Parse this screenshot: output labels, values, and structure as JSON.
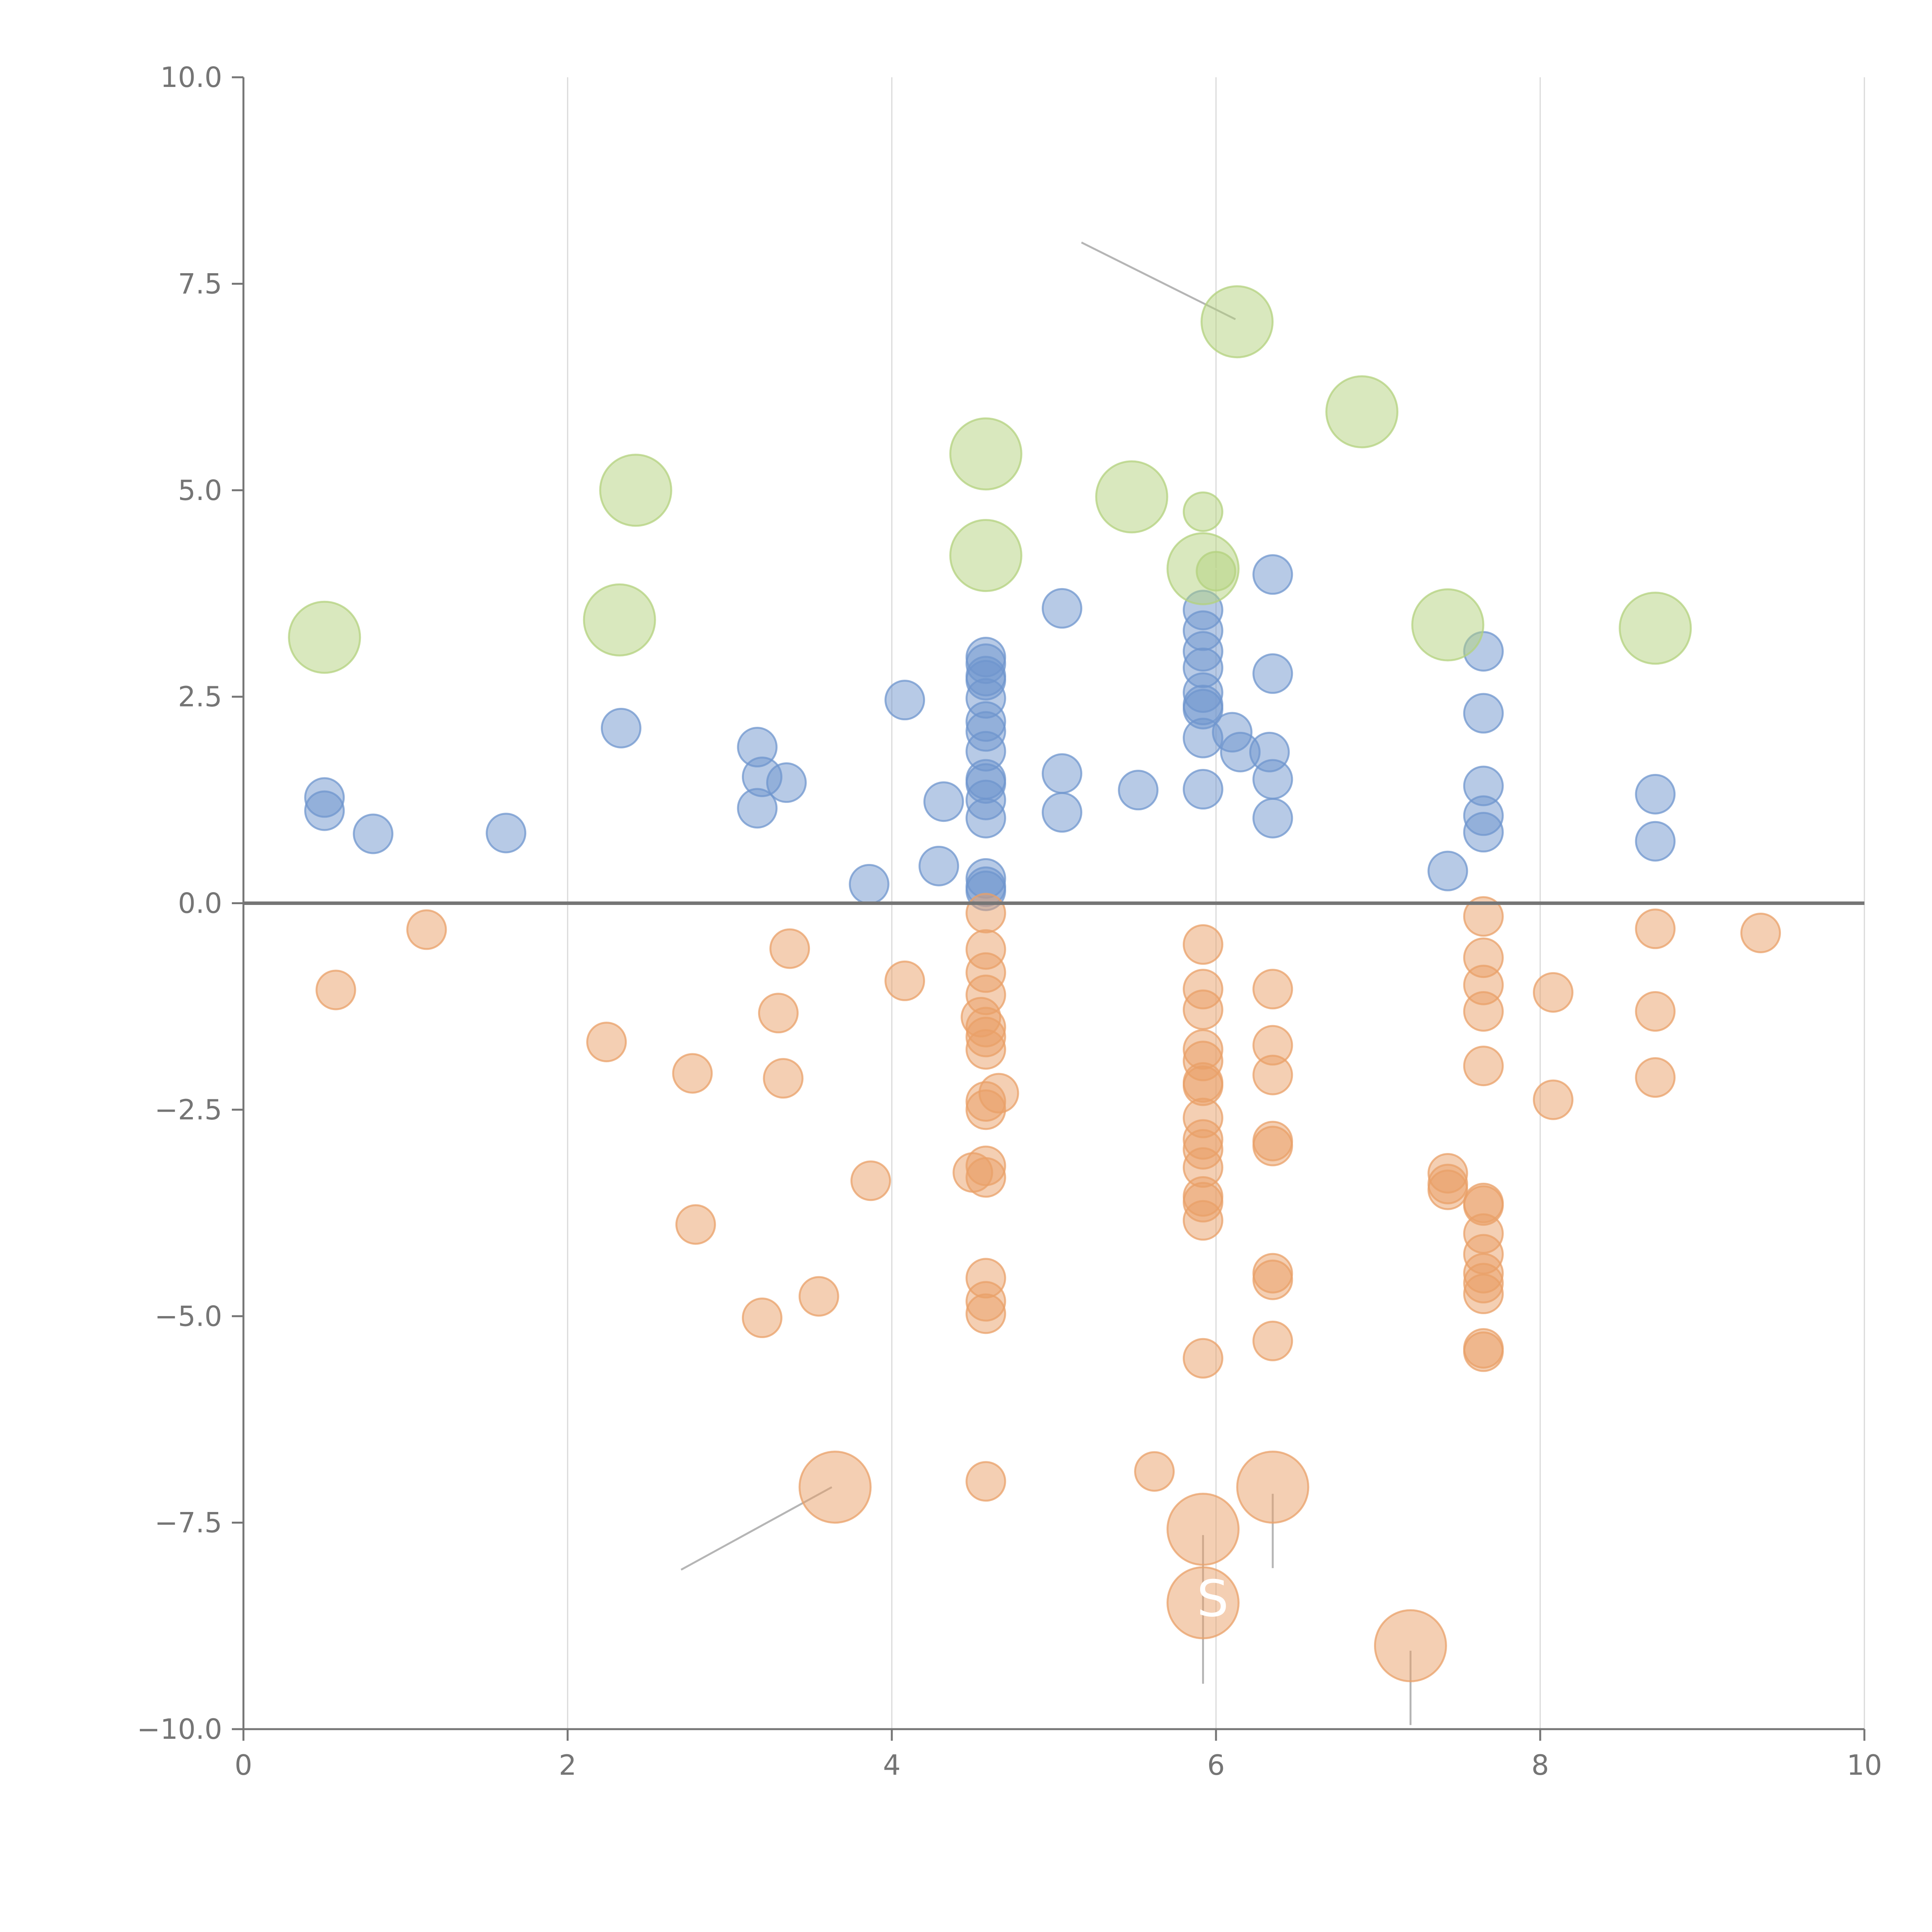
{
  "chart_data": {
    "type": "scatter",
    "title": "",
    "xlabel": "",
    "ylabel": "",
    "xlim": [
      0,
      10
    ],
    "ylim": [
      -10,
      10
    ],
    "grid": "vertical",
    "zero_line": true,
    "x_ticks": [
      "0",
      "2",
      "4",
      "6",
      "8",
      "10"
    ],
    "x_tick_values": [
      0,
      2,
      4,
      6,
      8,
      10
    ],
    "y_ticks": [
      "10.0",
      "7.5",
      "5.0",
      "2.5",
      "0.0",
      "−2.5",
      "−5.0",
      "−7.5",
      "−10.0"
    ],
    "y_tick_values": [
      10,
      7.5,
      5,
      2.5,
      0,
      -2.5,
      -5,
      -7.5,
      -10
    ],
    "colors": {
      "blue": "#6f95ce",
      "orange": "#eaa068",
      "green": "#b3d17e",
      "axis": "#757575",
      "grid": "#d9d9d9"
    },
    "series": [
      {
        "name": "blue",
        "color_key": "blue",
        "size": 1,
        "points": [
          [
            0.5,
            1.28
          ],
          [
            0.5,
            1.12
          ],
          [
            0.8,
            0.84
          ],
          [
            1.62,
            0.85
          ],
          [
            2.33,
            2.12
          ],
          [
            3.17,
            1.89
          ],
          [
            3.2,
            1.53
          ],
          [
            3.17,
            1.15
          ],
          [
            3.35,
            1.46
          ],
          [
            3.86,
            0.23
          ],
          [
            4.08,
            2.46
          ],
          [
            4.29,
            0.45
          ],
          [
            4.32,
            1.23
          ],
          [
            4.58,
            2.98
          ],
          [
            4.58,
            2.9
          ],
          [
            4.58,
            2.75
          ],
          [
            4.58,
            2.7
          ],
          [
            4.58,
            2.48
          ],
          [
            4.58,
            2.2
          ],
          [
            4.58,
            2.08
          ],
          [
            4.58,
            1.84
          ],
          [
            4.58,
            1.5
          ],
          [
            4.58,
            1.45
          ],
          [
            4.58,
            1.25
          ],
          [
            4.58,
            1.03
          ],
          [
            4.58,
            0.3
          ],
          [
            4.58,
            0.2
          ],
          [
            4.58,
            0.15
          ],
          [
            5.05,
            3.57
          ],
          [
            5.05,
            1.57
          ],
          [
            5.05,
            1.1
          ],
          [
            5.52,
            1.37
          ],
          [
            5.92,
            3.55
          ],
          [
            5.92,
            3.3
          ],
          [
            5.92,
            3.05
          ],
          [
            5.92,
            2.85
          ],
          [
            5.92,
            2.55
          ],
          [
            5.92,
            2.4
          ],
          [
            5.92,
            2.35
          ],
          [
            5.92,
            2.0
          ],
          [
            5.92,
            1.38
          ],
          [
            6.1,
            2.07
          ],
          [
            6.15,
            1.83
          ],
          [
            6.35,
            3.98
          ],
          [
            6.35,
            2.78
          ],
          [
            6.33,
            1.83
          ],
          [
            6.35,
            1.5
          ],
          [
            6.35,
            1.03
          ],
          [
            7.43,
            0.39
          ],
          [
            7.65,
            3.05
          ],
          [
            7.65,
            2.3
          ],
          [
            7.65,
            1.42
          ],
          [
            7.65,
            1.06
          ],
          [
            7.65,
            0.86
          ],
          [
            8.71,
            1.32
          ],
          [
            8.71,
            0.75
          ]
        ]
      },
      {
        "name": "orange",
        "color_key": "orange",
        "size": 1,
        "points": [
          [
            0.57,
            -1.05
          ],
          [
            1.13,
            -0.32
          ],
          [
            2.24,
            -1.68
          ],
          [
            2.77,
            -2.06
          ],
          [
            2.79,
            -3.89
          ],
          [
            3.2,
            -5.02
          ],
          [
            3.3,
            -1.33
          ],
          [
            3.33,
            -2.12
          ],
          [
            3.37,
            -0.55
          ],
          [
            3.55,
            -4.76
          ],
          [
            3.87,
            -3.36
          ],
          [
            4.08,
            -0.94
          ],
          [
            4.5,
            -3.26
          ],
          [
            4.58,
            -0.12
          ],
          [
            4.58,
            -0.56
          ],
          [
            4.58,
            -0.84
          ],
          [
            4.58,
            -1.11
          ],
          [
            4.55,
            -1.38
          ],
          [
            4.58,
            -1.5
          ],
          [
            4.58,
            -1.62
          ],
          [
            4.58,
            -1.77
          ],
          [
            4.66,
            -2.3
          ],
          [
            4.58,
            -2.4
          ],
          [
            4.58,
            -2.5
          ],
          [
            4.58,
            -3.18
          ],
          [
            4.58,
            -3.32
          ],
          [
            4.58,
            -4.54
          ],
          [
            4.58,
            -4.82
          ],
          [
            4.58,
            -4.97
          ],
          [
            4.58,
            -7.0
          ],
          [
            5.62,
            -6.88
          ],
          [
            5.92,
            -0.5
          ],
          [
            5.92,
            -1.04
          ],
          [
            5.92,
            -1.29
          ],
          [
            5.92,
            -1.77
          ],
          [
            5.92,
            -1.91
          ],
          [
            5.92,
            -2.17
          ],
          [
            5.92,
            -2.21
          ],
          [
            5.92,
            -2.6
          ],
          [
            5.92,
            -2.86
          ],
          [
            5.92,
            -2.98
          ],
          [
            5.92,
            -3.2
          ],
          [
            5.92,
            -3.55
          ],
          [
            5.92,
            -3.62
          ],
          [
            5.92,
            -3.84
          ],
          [
            5.92,
            -5.51
          ],
          [
            6.35,
            -1.04
          ],
          [
            6.35,
            -1.72
          ],
          [
            6.35,
            -2.08
          ],
          [
            6.35,
            -2.88
          ],
          [
            6.35,
            -2.94
          ],
          [
            6.35,
            -4.48
          ],
          [
            6.35,
            -4.56
          ],
          [
            6.35,
            -5.3
          ],
          [
            7.43,
            -3.27
          ],
          [
            7.43,
            -3.4
          ],
          [
            7.43,
            -3.47
          ],
          [
            7.65,
            -0.16
          ],
          [
            7.65,
            -0.66
          ],
          [
            7.65,
            -0.99
          ],
          [
            7.65,
            -1.31
          ],
          [
            7.65,
            -1.97
          ],
          [
            7.65,
            -3.63
          ],
          [
            7.65,
            -3.66
          ],
          [
            7.65,
            -4.0
          ],
          [
            7.65,
            -4.25
          ],
          [
            7.65,
            -4.48
          ],
          [
            7.65,
            -4.6
          ],
          [
            7.65,
            -4.73
          ],
          [
            7.65,
            -5.39
          ],
          [
            7.65,
            -5.43
          ],
          [
            8.08,
            -1.08
          ],
          [
            8.08,
            -2.38
          ],
          [
            8.71,
            -0.31
          ],
          [
            8.71,
            -1.31
          ],
          [
            8.71,
            -2.11
          ],
          [
            9.36,
            -0.36
          ]
        ]
      },
      {
        "name": "green",
        "color_key": "green",
        "size": 2,
        "points": [
          [
            0.5,
            3.22
          ],
          [
            2.32,
            3.43
          ],
          [
            2.42,
            5.0
          ],
          [
            4.58,
            5.44
          ],
          [
            4.58,
            4.21
          ],
          [
            5.48,
            4.92
          ],
          [
            5.92,
            4.05
          ],
          [
            6.13,
            7.04
          ],
          [
            6.9,
            5.95
          ],
          [
            7.43,
            3.37
          ],
          [
            8.71,
            3.33
          ]
        ]
      },
      {
        "name": "green-small",
        "color_key": "green",
        "size": 1,
        "points": [
          [
            5.92,
            4.74
          ],
          [
            6.0,
            4.02
          ]
        ]
      },
      {
        "name": "orange-large",
        "color_key": "orange",
        "size": 2,
        "points": [
          [
            3.65,
            -7.07
          ],
          [
            5.92,
            -7.58
          ],
          [
            5.92,
            -8.47
          ],
          [
            6.35,
            -7.07
          ],
          [
            7.2,
            -8.99
          ]
        ]
      }
    ],
    "annotations": [
      {
        "text": "S",
        "x": 5.98,
        "y": -8.42
      }
    ]
  }
}
